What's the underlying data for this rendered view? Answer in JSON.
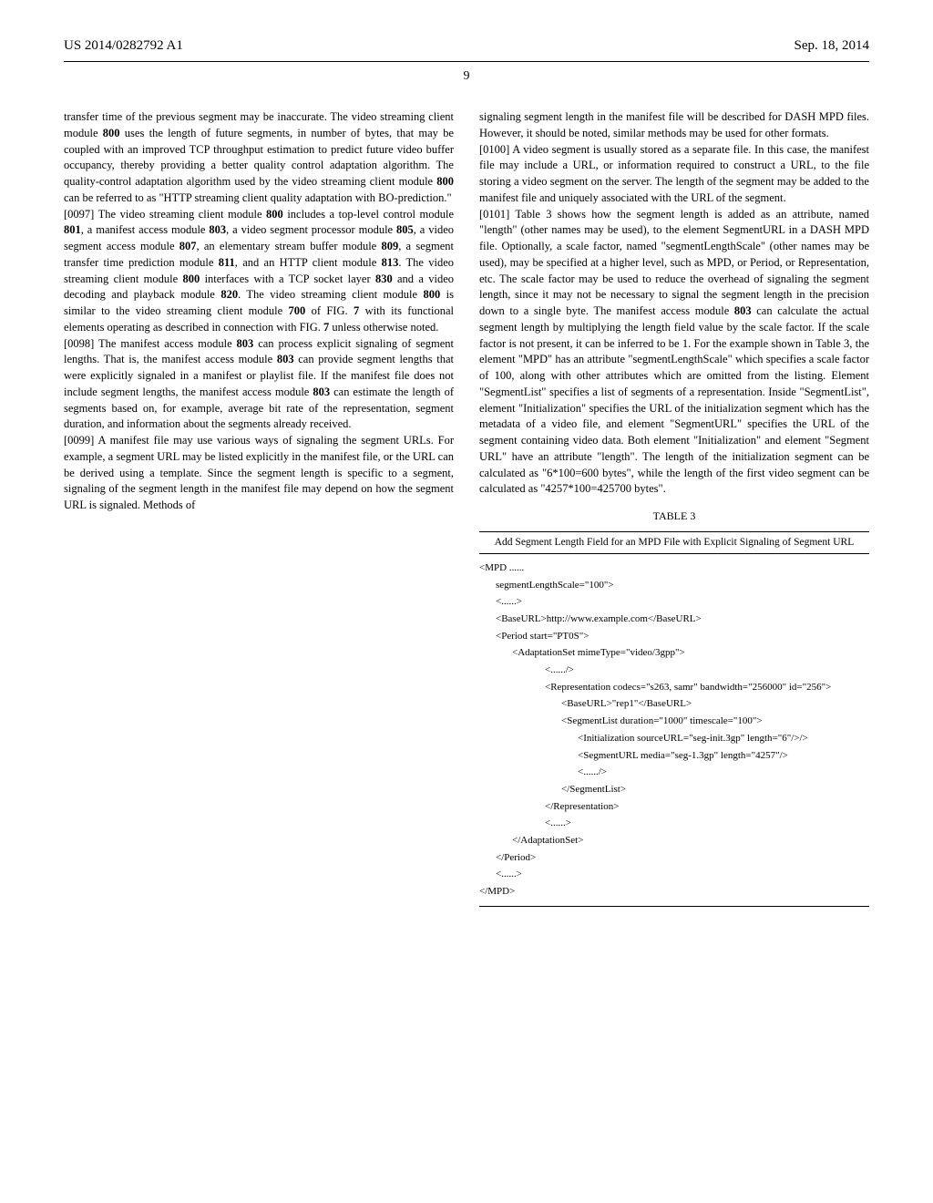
{
  "header": {
    "pub_number": "US 2014/0282792 A1",
    "date": "Sep. 18, 2014",
    "page_number": "9"
  },
  "left_column": {
    "para_096_cont": "transfer time of the previous segment may be inaccurate. The video streaming client module ",
    "para_096_800a": "800",
    "para_096_cont2": " uses the length of future segments, in number of bytes, that may be coupled with an improved TCP throughput estimation to predict future video buffer occupancy, thereby providing a better quality control adaptation algorithm. The quality-control adaptation algorithm used by the video streaming client module ",
    "para_096_800b": "800",
    "para_096_cont3": " can be referred to as \"HTTP streaming client quality adaptation with BO-prediction.\"",
    "para_097_num": "[0097]",
    "para_097_text1": "   The video streaming client module ",
    "para_097_800a": "800",
    "para_097_text2": " includes a top-level control module ",
    "para_097_801": "801",
    "para_097_text3": ", a manifest access module ",
    "para_097_803": "803",
    "para_097_text4": ", a video segment processor module ",
    "para_097_805": "805",
    "para_097_text5": ", a video segment access module ",
    "para_097_807": "807",
    "para_097_text6": ", an elementary stream buffer module ",
    "para_097_809": "809",
    "para_097_text7": ", a segment transfer time prediction module ",
    "para_097_811": "811",
    "para_097_text8": ", and an HTTP client module ",
    "para_097_813": "813",
    "para_097_text9": ". The video streaming client module ",
    "para_097_800b": "800",
    "para_097_text10": " interfaces with a TCP socket layer ",
    "para_097_830": "830",
    "para_097_text11": " and a video decoding and playback module ",
    "para_097_820": "820",
    "para_097_text12": ". The video streaming client module ",
    "para_097_800c": "800",
    "para_097_text13": " is similar to the video streaming client module ",
    "para_097_700": "700",
    "para_097_text14": " of FIG. ",
    "para_097_7a": "7",
    "para_097_text15": " with its functional elements operating as described in connection with FIG. ",
    "para_097_7b": "7",
    "para_097_text16": " unless otherwise noted.",
    "para_098_num": "[0098]",
    "para_098_text1": "   The manifest access module ",
    "para_098_803a": "803",
    "para_098_text2": " can process explicit signaling of segment lengths. That is, the manifest access module ",
    "para_098_803b": "803",
    "para_098_text3": " can provide segment lengths that were explicitly signaled in a manifest or playlist file. If the manifest file does not include segment lengths, the manifest access module ",
    "para_098_803c": "803",
    "para_098_text4": " can estimate the length of segments based on, for example, average bit rate of the representation, segment duration, and information about the segments already received.",
    "para_099_num": "[0099]",
    "para_099_text": "   A manifest file may use various ways of signaling the segment URLs. For example, a segment URL may be listed explicitly in the manifest file, or the URL can be derived using a template. Since the segment length is specific to a segment, signaling of the segment length in the manifest file may depend on how the segment URL is signaled. Methods of"
  },
  "right_column": {
    "para_099_cont": "signaling segment length in the manifest file will be described for DASH MPD files. However, it should be noted, similar methods may be used for other formats.",
    "para_100_num": "[0100]",
    "para_100_text": "   A video segment is usually stored as a separate file. In this case, the manifest file may include a URL, or information required to construct a URL, to the file storing a video segment on the server. The length of the segment may be added to the manifest file and uniquely associated with the URL of the segment.",
    "para_101_num": "[0101]",
    "para_101_text1": "   Table 3 shows how the segment length is added as an attribute, named \"length\" (other names may be used), to the element SegmentURL in a DASH MPD file. Optionally, a scale factor, named \"segmentLengthScale\" (other names may be used), may be specified at a higher level, such as MPD, or Period, or Representation, etc. The scale factor may be used to reduce the overhead of signaling the segment length, since it may not be necessary to signal the segment length in the precision down to a single byte. The manifest access module ",
    "para_101_803": "803",
    "para_101_text2": " can calculate the actual segment length by multiplying the length field value by the scale factor. If the scale factor is not present, it can be inferred to be 1. For the example shown in Table 3, the element \"MPD\" has an attribute \"segmentLengthScale\" which specifies a scale factor of 100, along with other attributes which are omitted from the listing. Element \"SegmentList\" specifies a list of segments of a representation. Inside \"SegmentList\", element \"Initialization\" specifies the URL of the initialization segment which has the metadata of a video file, and element \"SegmentURL\" specifies the URL of the segment containing video data. Both element \"Initialization\" and element \"Segment URL\" have an attribute \"length\". The length of the initialization segment can be calculated as \"6*100=600 bytes\", while the length of the first video segment can be calculated as \"4257*100=425700 bytes\"."
  },
  "table": {
    "caption": "TABLE 3",
    "subtitle": "Add Segment Length Field for an MPD File with Explicit Signaling of Segment URL",
    "lines": [
      {
        "indent": 0,
        "text": "<MPD ......"
      },
      {
        "indent": 1,
        "text": "segmentLengthScale=\"100\">"
      },
      {
        "indent": 1,
        "text": "<......>"
      },
      {
        "indent": 1,
        "text": "<BaseURL>http://www.example.com</BaseURL>"
      },
      {
        "indent": 1,
        "text": "<Period start=\"PT0S\">"
      },
      {
        "indent": 2,
        "text": "<AdaptationSet mimeType=\"video/3gpp\">"
      },
      {
        "indent": 4,
        "text": "<....../>"
      },
      {
        "indent": 4,
        "text": "<Representation codecs=\"s263, samr\" bandwidth=\"256000\" id=\"256\">"
      },
      {
        "indent": 5,
        "text": "<BaseURL>\"rep1\"</BaseURL>"
      },
      {
        "indent": 5,
        "text": "<SegmentList duration=\"1000\" timescale=\"100\">"
      },
      {
        "indent": 6,
        "text": "<Initialization sourceURL=\"seg-init.3gp\" length=\"6\"/>/>"
      },
      {
        "indent": 6,
        "text": "<SegmentURL media=\"seg-1.3gp\" length=\"4257\"/>"
      },
      {
        "indent": 6,
        "text": "<....../>"
      },
      {
        "indent": 5,
        "text": "</SegmentList>"
      },
      {
        "indent": 4,
        "text": "</Representation>"
      },
      {
        "indent": 4,
        "text": "<......>"
      },
      {
        "indent": 2,
        "text": "</AdaptationSet>"
      },
      {
        "indent": 1,
        "text": "</Period>"
      },
      {
        "indent": 1,
        "text": "<......>"
      },
      {
        "indent": 0,
        "text": "</MPD>"
      }
    ]
  }
}
